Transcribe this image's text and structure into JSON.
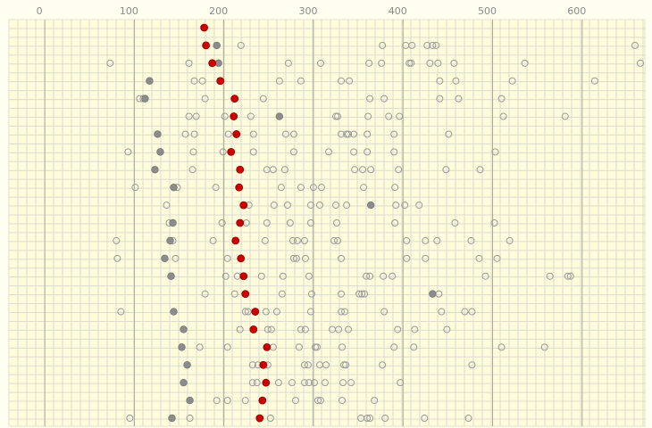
{
  "chart_data": {
    "type": "dot",
    "xlim": [
      -40,
      670
    ],
    "xticks": [
      0,
      100,
      200,
      300,
      400,
      500,
      600
    ],
    "grid": true,
    "highlight_color": "#cc0000",
    "marker_color": "#8c8c8c",
    "open_color": "#9a9a9a",
    "rows": [
      {
        "highlight": 178,
        "marker": null,
        "others": []
      },
      {
        "highlight": 180,
        "marker": 192,
        "others": [
          219,
          377,
          403,
          410,
          427,
          433,
          437,
          659
        ]
      },
      {
        "highlight": 187,
        "marker": 194,
        "others": [
          73,
          161,
          272,
          308,
          362,
          376,
          407,
          409,
          430,
          439,
          457,
          536,
          665
        ]
      },
      {
        "highlight": 196,
        "marker": 117,
        "others": [
          167,
          176,
          262,
          286,
          331,
          340,
          441,
          459,
          522,
          614
        ]
      },
      {
        "highlight": 212,
        "marker": 112,
        "others": [
          106,
          110,
          179,
          244,
          363,
          379,
          441,
          462,
          510
        ]
      },
      {
        "highlight": 211,
        "marker": 262,
        "others": [
          161,
          169,
          201,
          230,
          325,
          327,
          361,
          384,
          396,
          512,
          581
        ]
      },
      {
        "highlight": 214,
        "marker": 126,
        "others": [
          157,
          167,
          205,
          233,
          269,
          278,
          331,
          337,
          339,
          345,
          360,
          390,
          451
        ]
      },
      {
        "highlight": 208,
        "marker": 129,
        "others": [
          93,
          166,
          199,
          233,
          278,
          317,
          345,
          360,
          390,
          503
        ]
      },
      {
        "highlight": 218,
        "marker": 123,
        "others": [
          165,
          248,
          255,
          268,
          346,
          355,
          364,
          395,
          448,
          486
        ]
      },
      {
        "highlight": 217,
        "marker": 144,
        "others": [
          101,
          148,
          191,
          264,
          286,
          300,
          309,
          356,
          391
        ]
      },
      {
        "highlight": 222,
        "marker": 364,
        "others": [
          136,
          228,
          256,
          271,
          297,
          307,
          325,
          337,
          392,
          402,
          418
        ]
      },
      {
        "highlight": 218,
        "marker": 143,
        "others": [
          139,
          198,
          225,
          248,
          274,
          297,
          326,
          391,
          458,
          502
        ]
      },
      {
        "highlight": 213,
        "marker": 140,
        "others": [
          80,
          143,
          188,
          246,
          277,
          282,
          290,
          323,
          327,
          404,
          425,
          438,
          476,
          519
        ]
      },
      {
        "highlight": 219,
        "marker": 134,
        "others": [
          81,
          146,
          204,
          278,
          281,
          291,
          331,
          404,
          425,
          485,
          505
        ]
      },
      {
        "highlight": 222,
        "marker": 141,
        "others": [
          202,
          215,
          242,
          266,
          295,
          359,
          363,
          378,
          388,
          492,
          564,
          584,
          587
        ]
      },
      {
        "highlight": 224,
        "marker": 433,
        "others": [
          179,
          212,
          265,
          298,
          331,
          351,
          354,
          357,
          440
        ]
      },
      {
        "highlight": 235,
        "marker": 144,
        "others": [
          85,
          224,
          227,
          247,
          259,
          297,
          331,
          335,
          379,
          443,
          469,
          477
        ]
      },
      {
        "highlight": 233,
        "marker": 155,
        "others": [
          218,
          249,
          253,
          286,
          291,
          321,
          328,
          339,
          394,
          413,
          449
        ]
      },
      {
        "highlight": 248,
        "marker": 153,
        "others": [
          173,
          204,
          255,
          284,
          302,
          304,
          332,
          390,
          412,
          510,
          558
        ]
      },
      {
        "highlight": 244,
        "marker": 159,
        "others": [
          232,
          238,
          249,
          290,
          294,
          307,
          314,
          334,
          336,
          377,
          477
        ]
      },
      {
        "highlight": 247,
        "marker": 155,
        "others": [
          232,
          237,
          261,
          276,
          290,
          295,
          301,
          313,
          333,
          342,
          397
        ]
      },
      {
        "highlight": 243,
        "marker": 162,
        "others": [
          192,
          204,
          224,
          280,
          305,
          308,
          332,
          368
        ]
      },
      {
        "highlight": 240,
        "marker": 142,
        "others": [
          95,
          162,
          252,
          353,
          360,
          363,
          380,
          424,
          473
        ]
      }
    ]
  }
}
